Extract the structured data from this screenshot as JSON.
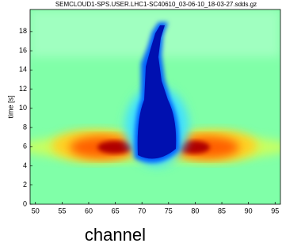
{
  "chart_data": {
    "type": "heatmap",
    "title": "SEMCLOUD1-SPS.USER.LHC1-SC40610_03-06-10_18-03-27.sdds.gz",
    "xlabel": "channel",
    "ylabel": "time [s]",
    "xlim": [
      49,
      96
    ],
    "xticks": [
      50,
      55,
      60,
      65,
      70,
      75,
      80,
      85,
      90,
      95
    ],
    "ylim": [
      0,
      20.3
    ],
    "yticks": [
      0,
      2,
      4,
      6,
      8,
      10,
      12,
      14,
      16,
      18
    ]
  }
}
